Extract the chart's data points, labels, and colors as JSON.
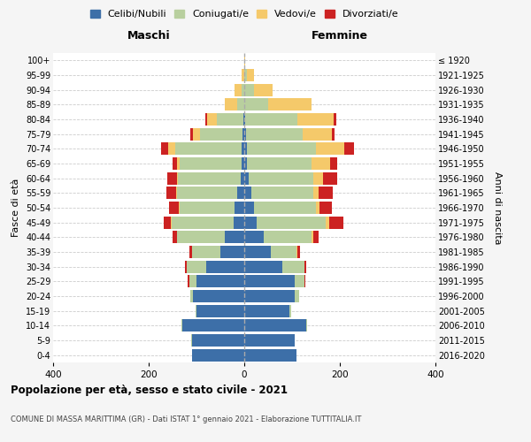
{
  "age_groups": [
    "0-4",
    "5-9",
    "10-14",
    "15-19",
    "20-24",
    "25-29",
    "30-34",
    "35-39",
    "40-44",
    "45-49",
    "50-54",
    "55-59",
    "60-64",
    "65-69",
    "70-74",
    "75-79",
    "80-84",
    "85-89",
    "90-94",
    "95-99",
    "100+"
  ],
  "birth_years": [
    "2016-2020",
    "2011-2015",
    "2006-2010",
    "2001-2005",
    "1996-2000",
    "1991-1995",
    "1986-1990",
    "1981-1985",
    "1976-1980",
    "1971-1975",
    "1966-1970",
    "1961-1965",
    "1956-1960",
    "1951-1955",
    "1946-1950",
    "1941-1945",
    "1936-1940",
    "1931-1935",
    "1926-1930",
    "1921-1925",
    "≤ 1920"
  ],
  "colors": {
    "celibi": "#3d6fa8",
    "coniugati": "#b8cf9e",
    "vedovi": "#f5c96a",
    "divorziati": "#cc2222"
  },
  "males": {
    "celibi": [
      110,
      110,
      130,
      100,
      108,
      100,
      80,
      50,
      40,
      22,
      20,
      15,
      8,
      5,
      5,
      3,
      2,
      0,
      0,
      0,
      0
    ],
    "coniugati": [
      0,
      1,
      2,
      2,
      5,
      15,
      40,
      60,
      100,
      130,
      115,
      125,
      130,
      130,
      140,
      90,
      55,
      15,
      5,
      0,
      0
    ],
    "vedovi": [
      0,
      0,
      0,
      0,
      0,
      0,
      0,
      0,
      0,
      2,
      2,
      3,
      3,
      5,
      15,
      15,
      20,
      25,
      15,
      5,
      0
    ],
    "divorziati": [
      0,
      0,
      0,
      0,
      0,
      3,
      5,
      5,
      10,
      15,
      20,
      20,
      20,
      10,
      15,
      5,
      5,
      0,
      0,
      0,
      0
    ]
  },
  "females": {
    "celibi": [
      110,
      105,
      130,
      95,
      105,
      105,
      80,
      55,
      40,
      25,
      20,
      15,
      10,
      5,
      5,
      3,
      2,
      0,
      0,
      0,
      0
    ],
    "coniugati": [
      0,
      1,
      2,
      3,
      10,
      20,
      45,
      55,
      100,
      145,
      130,
      130,
      135,
      135,
      145,
      120,
      110,
      50,
      20,
      5,
      0
    ],
    "vedovi": [
      0,
      0,
      0,
      0,
      0,
      0,
      0,
      2,
      5,
      8,
      8,
      10,
      20,
      40,
      60,
      60,
      75,
      90,
      40,
      15,
      2
    ],
    "divorziati": [
      0,
      0,
      0,
      0,
      0,
      3,
      5,
      5,
      10,
      30,
      25,
      30,
      30,
      15,
      20,
      5,
      5,
      0,
      0,
      0,
      0
    ]
  },
  "title": "Popolazione per età, sesso e stato civile - 2021",
  "subtitle": "COMUNE DI MASSA MARITTIMA (GR) - Dati ISTAT 1° gennaio 2021 - Elaborazione TUTTITALIA.IT",
  "xlabel_left": "Maschi",
  "xlabel_right": "Femmine",
  "ylabel_left": "Fasce di età",
  "ylabel_right": "Anni di nascita",
  "xlim": 400,
  "legend_labels": [
    "Celibi/Nubili",
    "Coniugati/e",
    "Vedovi/e",
    "Divorziati/e"
  ],
  "bg_color": "#f5f5f5",
  "plot_bg_color": "#ffffff"
}
